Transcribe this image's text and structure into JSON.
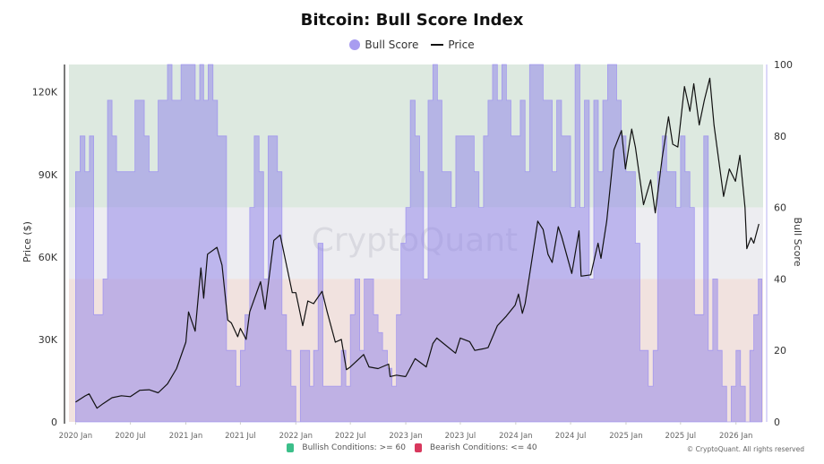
{
  "chart_data": {
    "type": "area+line",
    "title": "Bitcoin: Bull Score Index",
    "legend": [
      "Bull Score",
      "Price"
    ],
    "legend_placement": "top",
    "ylabel_left": "Price ($)",
    "ylabel_right": "Bull Score",
    "left_ticks": [
      "0",
      "30K",
      "60K",
      "90K",
      "120K"
    ],
    "left_tick_values": [
      0,
      30000,
      60000,
      90000,
      120000
    ],
    "ylim_left": [
      0,
      130000
    ],
    "right_ticks": [
      "0",
      "20",
      "40",
      "60",
      "80",
      "100"
    ],
    "right_tick_values": [
      0,
      20,
      40,
      60,
      80,
      100
    ],
    "ylim_right": [
      0,
      100
    ],
    "x_ticks": [
      "2020 Jan",
      "2020 Jul",
      "2021 Jan",
      "2021 Jul",
      "2022 Jan",
      "2022 Jul",
      "2023 Jan",
      "2023 Jul",
      "2024 Jan",
      "2024 Jul",
      "2025 Jan",
      "2025 Jul",
      "2026 Jan"
    ],
    "x_tick_dates": [
      "2020-01",
      "2020-07",
      "2021-01",
      "2021-07",
      "2022-01",
      "2022-07",
      "2023-01",
      "2023-07",
      "2024-01",
      "2024-07",
      "2025-01",
      "2025-07",
      "2026-01"
    ],
    "xlim": [
      "2019-12-10",
      "2026-04-01"
    ],
    "bands": [
      {
        "label": "Bullish Conditions: >= 60",
        "from": 60,
        "to": 100,
        "color": "#dde9e0",
        "legend_color": "#3cbf8a"
      },
      {
        "label": "",
        "from": 40,
        "to": 60,
        "color": "#ededf1"
      },
      {
        "label": "Bearish Conditions: <= 40",
        "from": 0,
        "to": 40,
        "color": "#f1e2df",
        "legend_color": "#d8385d"
      }
    ],
    "grid": false,
    "bull_score": {
      "name": "Bull Score",
      "color": "#8e80ea",
      "half_month_values": [
        [
          "2020-01",
          70,
          80
        ],
        [
          "2020-02",
          70,
          80
        ],
        [
          "2020-03",
          30,
          30
        ],
        [
          "2020-04",
          40,
          90
        ],
        [
          "2020-05",
          80,
          70
        ],
        [
          "2020-06",
          70,
          70
        ],
        [
          "2020-07",
          70,
          90
        ],
        [
          "2020-08",
          90,
          80
        ],
        [
          "2020-09",
          70,
          70
        ],
        [
          "2020-10",
          90,
          90
        ],
        [
          "2020-11",
          100,
          90
        ],
        [
          "2020-12",
          90,
          100
        ],
        [
          "2021-01",
          100,
          100
        ],
        [
          "2021-02",
          90,
          100
        ],
        [
          "2021-03",
          90,
          100
        ],
        [
          "2021-04",
          90,
          80
        ],
        [
          "2021-05",
          80,
          20
        ],
        [
          "2021-06",
          20,
          10
        ],
        [
          "2021-07",
          20,
          30
        ],
        [
          "2021-08",
          60,
          80
        ],
        [
          "2021-09",
          70,
          40
        ],
        [
          "2021-10",
          80,
          80
        ],
        [
          "2021-11",
          70,
          30
        ],
        [
          "2021-12",
          20,
          10
        ],
        [
          "2022-01",
          0,
          20
        ],
        [
          "2022-02",
          20,
          10
        ],
        [
          "2022-03",
          20,
          50
        ],
        [
          "2022-04",
          10,
          10
        ],
        [
          "2022-05",
          10,
          10
        ],
        [
          "2022-06",
          20,
          10
        ],
        [
          "2022-07",
          30,
          40
        ],
        [
          "2022-08",
          20,
          40
        ],
        [
          "2022-09",
          40,
          30
        ],
        [
          "2022-10",
          25,
          20
        ],
        [
          "2022-11",
          15,
          10
        ],
        [
          "2022-12",
          30,
          50
        ],
        [
          "2023-01",
          60,
          90
        ],
        [
          "2023-02",
          80,
          70
        ],
        [
          "2023-03",
          40,
          90
        ],
        [
          "2023-04",
          100,
          90
        ],
        [
          "2023-05",
          70,
          70
        ],
        [
          "2023-06",
          60,
          80
        ],
        [
          "2023-07",
          80,
          80
        ],
        [
          "2023-08",
          80,
          70
        ],
        [
          "2023-09",
          60,
          80
        ],
        [
          "2023-10",
          90,
          100
        ],
        [
          "2023-11",
          90,
          100
        ],
        [
          "2023-12",
          90,
          80
        ],
        [
          "2024-01",
          80,
          90
        ],
        [
          "2024-02",
          70,
          100
        ],
        [
          "2024-03",
          100,
          100
        ],
        [
          "2024-04",
          90,
          90
        ],
        [
          "2024-05",
          70,
          90
        ],
        [
          "2024-06",
          80,
          80
        ],
        [
          "2024-07",
          60,
          100
        ],
        [
          "2024-08",
          60,
          90
        ],
        [
          "2024-09",
          40,
          90
        ],
        [
          "2024-10",
          70,
          90
        ],
        [
          "2024-11",
          100,
          100
        ],
        [
          "2024-12",
          90,
          80
        ],
        [
          "2025-01",
          70,
          70
        ],
        [
          "2025-02",
          50,
          20
        ],
        [
          "2025-03",
          20,
          10
        ],
        [
          "2025-04",
          20,
          70
        ],
        [
          "2025-05",
          80,
          70
        ],
        [
          "2025-06",
          70,
          60
        ],
        [
          "2025-07",
          80,
          70
        ],
        [
          "2025-08",
          60,
          30
        ],
        [
          "2025-09",
          30,
          80
        ],
        [
          "2025-10",
          20,
          40
        ],
        [
          "2025-11",
          20,
          10
        ],
        [
          "2025-12",
          0,
          10
        ],
        [
          "2026-01",
          20,
          10
        ],
        [
          "2026-02",
          0,
          20
        ],
        [
          "2026-03",
          30,
          40
        ]
      ]
    },
    "price": {
      "name": "Price",
      "color": "#111111",
      "points": [
        [
          "2020-01-01",
          7200
        ],
        [
          "2020-02-01",
          9400
        ],
        [
          "2020-02-15",
          10200
        ],
        [
          "2020-03-12",
          5000
        ],
        [
          "2020-04-01",
          6600
        ],
        [
          "2020-05-01",
          8800
        ],
        [
          "2020-06-01",
          9500
        ],
        [
          "2020-07-01",
          9200
        ],
        [
          "2020-08-01",
          11500
        ],
        [
          "2020-09-01",
          11700
        ],
        [
          "2020-10-01",
          10600
        ],
        [
          "2020-11-01",
          13800
        ],
        [
          "2020-12-01",
          19400
        ],
        [
          "2021-01-01",
          29000
        ],
        [
          "2021-01-10",
          40000
        ],
        [
          "2021-02-01",
          33000
        ],
        [
          "2021-02-20",
          56000
        ],
        [
          "2021-03-01",
          45000
        ],
        [
          "2021-03-14",
          61000
        ],
        [
          "2021-04-14",
          63500
        ],
        [
          "2021-05-01",
          57000
        ],
        [
          "2021-05-20",
          37000
        ],
        [
          "2021-06-01",
          36000
        ],
        [
          "2021-06-22",
          31000
        ],
        [
          "2021-07-01",
          34000
        ],
        [
          "2021-07-20",
          30000
        ],
        [
          "2021-08-01",
          40000
        ],
        [
          "2021-09-06",
          51000
        ],
        [
          "2021-09-21",
          41000
        ],
        [
          "2021-10-20",
          66000
        ],
        [
          "2021-11-10",
          68000
        ],
        [
          "2021-12-01",
          57000
        ],
        [
          "2021-12-20",
          47000
        ],
        [
          "2022-01-01",
          47000
        ],
        [
          "2022-01-24",
          35000
        ],
        [
          "2022-02-10",
          44000
        ],
        [
          "2022-03-01",
          43000
        ],
        [
          "2022-03-29",
          47500
        ],
        [
          "2022-04-15",
          40000
        ],
        [
          "2022-05-12",
          29000
        ],
        [
          "2022-06-01",
          30000
        ],
        [
          "2022-06-18",
          19000
        ],
        [
          "2022-07-01",
          20000
        ],
        [
          "2022-08-14",
          24500
        ],
        [
          "2022-09-01",
          20000
        ],
        [
          "2022-10-01",
          19400
        ],
        [
          "2022-11-05",
          21000
        ],
        [
          "2022-11-10",
          16500
        ],
        [
          "2022-12-01",
          17000
        ],
        [
          "2022-12-30",
          16500
        ],
        [
          "2023-01-01",
          16600
        ],
        [
          "2023-02-01",
          23000
        ],
        [
          "2023-03-10",
          20000
        ],
        [
          "2023-04-01",
          28500
        ],
        [
          "2023-04-14",
          30500
        ],
        [
          "2023-05-01",
          29000
        ],
        [
          "2023-06-15",
          25000
        ],
        [
          "2023-07-01",
          30500
        ],
        [
          "2023-08-01",
          29200
        ],
        [
          "2023-08-18",
          26000
        ],
        [
          "2023-09-15",
          26600
        ],
        [
          "2023-10-01",
          27000
        ],
        [
          "2023-11-01",
          35000
        ],
        [
          "2023-12-01",
          38500
        ],
        [
          "2023-12-30",
          42500
        ],
        [
          "2024-01-10",
          46500
        ],
        [
          "2024-01-23",
          39500
        ],
        [
          "2024-02-01",
          43000
        ],
        [
          "2024-02-28",
          62000
        ],
        [
          "2024-03-14",
          73000
        ],
        [
          "2024-04-01",
          70000
        ],
        [
          "2024-04-17",
          61000
        ],
        [
          "2024-05-01",
          58000
        ],
        [
          "2024-05-21",
          71000
        ],
        [
          "2024-06-01",
          67500
        ],
        [
          "2024-07-05",
          54000
        ],
        [
          "2024-07-29",
          69500
        ],
        [
          "2024-08-05",
          53000
        ],
        [
          "2024-09-06",
          53500
        ],
        [
          "2024-09-30",
          65000
        ],
        [
          "2024-10-10",
          59500
        ],
        [
          "2024-10-29",
          73000
        ],
        [
          "2024-11-12",
          88000
        ],
        [
          "2024-11-22",
          99000
        ],
        [
          "2024-12-17",
          106000
        ],
        [
          "2024-12-30",
          92000
        ],
        [
          "2025-01-20",
          106500
        ],
        [
          "2025-02-01",
          100000
        ],
        [
          "2025-02-28",
          79000
        ],
        [
          "2025-03-24",
          88000
        ],
        [
          "2025-04-08",
          76000
        ],
        [
          "2025-05-01",
          96000
        ],
        [
          "2025-05-22",
          111000
        ],
        [
          "2025-06-05",
          101000
        ],
        [
          "2025-06-22",
          100000
        ],
        [
          "2025-07-14",
          122000
        ],
        [
          "2025-08-01",
          113000
        ],
        [
          "2025-08-14",
          123000
        ],
        [
          "2025-09-01",
          108000
        ],
        [
          "2025-09-18",
          117000
        ],
        [
          "2025-10-06",
          125000
        ],
        [
          "2025-10-20",
          108000
        ],
        [
          "2025-11-21",
          82000
        ],
        [
          "2025-12-10",
          92000
        ],
        [
          "2025-12-30",
          87500
        ],
        [
          "2026-01-14",
          97000
        ],
        [
          "2026-01-31",
          78000
        ],
        [
          "2026-02-06",
          63000
        ],
        [
          "2026-02-20",
          67000
        ],
        [
          "2026-03-01",
          65000
        ],
        [
          "2026-03-18",
          72000
        ]
      ]
    },
    "watermark": "CryptoQuant"
  },
  "footer": {
    "bullish_label": "Bullish Conditions: >= 60",
    "bearish_label": "Bearish Conditions: <= 40",
    "copyright": "© CryptoQuant. All rights reserved"
  }
}
